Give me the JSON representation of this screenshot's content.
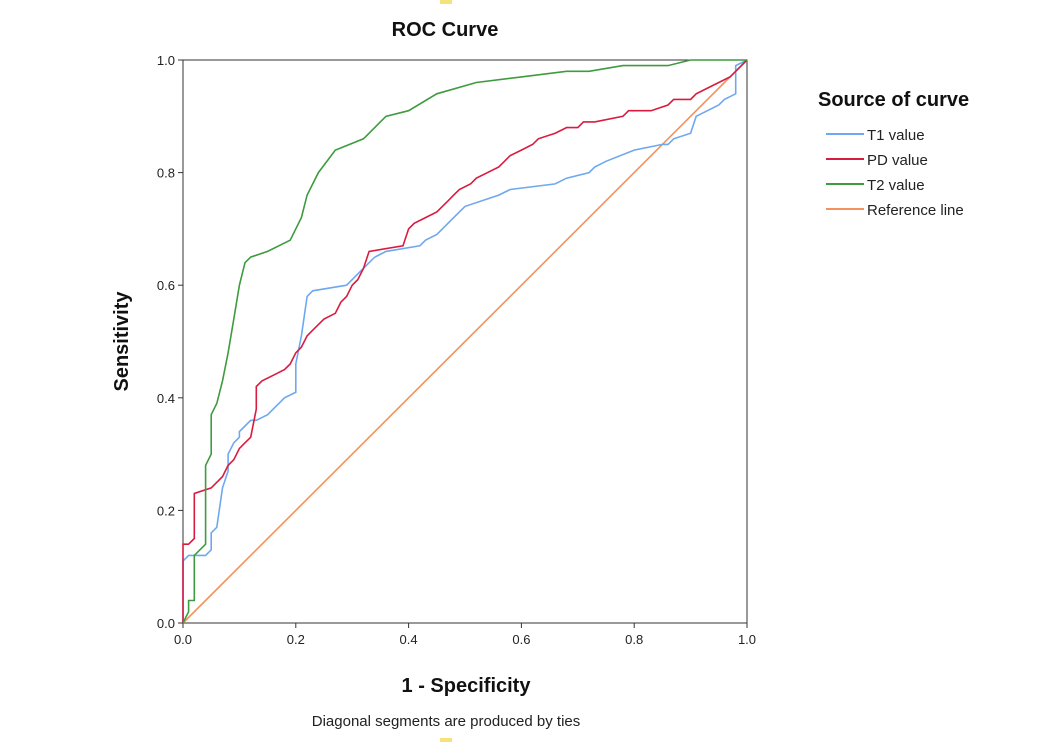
{
  "chart_data": {
    "type": "line",
    "title": "ROC Curve",
    "xlabel": "1 - Specificity",
    "ylabel": "Sensitivity",
    "xlim": [
      0,
      1
    ],
    "ylim": [
      0,
      1
    ],
    "x_ticks": [
      0.0,
      0.2,
      0.4,
      0.6,
      0.8,
      1.0
    ],
    "y_ticks": [
      0.0,
      0.2,
      0.4,
      0.6,
      0.8,
      1.0
    ],
    "x_tick_labels": [
      "0.0",
      "0.2",
      "0.4",
      "0.6",
      "0.8",
      "1.0"
    ],
    "y_tick_labels": [
      "0.0",
      "0.2",
      "0.4",
      "0.6",
      "0.8",
      "1.0"
    ],
    "grid": false,
    "legend_title": "Source of curve",
    "legend_position": "right",
    "footnote": "Diagonal  segments are produced by ties",
    "series": [
      {
        "name": "T1 value",
        "color": "#6fa8f0",
        "x": [
          0,
          0,
          0.01,
          0.04,
          0.05,
          0.05,
          0.06,
          0.07,
          0.08,
          0.08,
          0.09,
          0.1,
          0.1,
          0.11,
          0.12,
          0.13,
          0.15,
          0.16,
          0.17,
          0.18,
          0.2,
          0.2,
          0.21,
          0.22,
          0.23,
          0.23,
          0.29,
          0.31,
          0.32,
          0.33,
          0.34,
          0.36,
          0.42,
          0.43,
          0.45,
          0.46,
          0.48,
          0.5,
          0.56,
          0.58,
          0.66,
          0.68,
          0.72,
          0.73,
          0.75,
          0.8,
          0.85,
          0.86,
          0.87,
          0.9,
          0.91,
          0.95,
          0.96,
          0.98,
          0.98,
          1.0
        ],
        "y": [
          0,
          0.11,
          0.12,
          0.12,
          0.13,
          0.16,
          0.17,
          0.24,
          0.27,
          0.3,
          0.32,
          0.33,
          0.34,
          0.35,
          0.36,
          0.36,
          0.37,
          0.38,
          0.39,
          0.4,
          0.41,
          0.46,
          0.51,
          0.58,
          0.59,
          0.59,
          0.6,
          0.62,
          0.63,
          0.64,
          0.65,
          0.66,
          0.67,
          0.68,
          0.69,
          0.7,
          0.72,
          0.74,
          0.76,
          0.77,
          0.78,
          0.79,
          0.8,
          0.81,
          0.82,
          0.84,
          0.85,
          0.85,
          0.86,
          0.87,
          0.9,
          0.92,
          0.93,
          0.94,
          0.99,
          1.0
        ]
      },
      {
        "name": "PD value",
        "color": "#d81c3f",
        "x": [
          0,
          0,
          0.01,
          0.02,
          0.02,
          0.05,
          0.06,
          0.07,
          0.08,
          0.09,
          0.1,
          0.11,
          0.12,
          0.13,
          0.13,
          0.14,
          0.16,
          0.18,
          0.19,
          0.2,
          0.21,
          0.22,
          0.23,
          0.24,
          0.25,
          0.27,
          0.28,
          0.29,
          0.3,
          0.31,
          0.32,
          0.33,
          0.39,
          0.4,
          0.41,
          0.43,
          0.45,
          0.46,
          0.47,
          0.48,
          0.49,
          0.51,
          0.52,
          0.56,
          0.57,
          0.58,
          0.6,
          0.62,
          0.63,
          0.66,
          0.68,
          0.7,
          0.71,
          0.73,
          0.78,
          0.79,
          0.83,
          0.86,
          0.87,
          0.9,
          0.91,
          0.93,
          0.95,
          0.97,
          0.98,
          1.0
        ],
        "y": [
          0,
          0.14,
          0.14,
          0.15,
          0.23,
          0.24,
          0.25,
          0.26,
          0.28,
          0.29,
          0.31,
          0.32,
          0.33,
          0.38,
          0.42,
          0.43,
          0.44,
          0.45,
          0.46,
          0.48,
          0.49,
          0.51,
          0.52,
          0.53,
          0.54,
          0.55,
          0.57,
          0.58,
          0.6,
          0.61,
          0.63,
          0.66,
          0.67,
          0.7,
          0.71,
          0.72,
          0.73,
          0.74,
          0.75,
          0.76,
          0.77,
          0.78,
          0.79,
          0.81,
          0.82,
          0.83,
          0.84,
          0.85,
          0.86,
          0.87,
          0.88,
          0.88,
          0.89,
          0.89,
          0.9,
          0.91,
          0.91,
          0.92,
          0.93,
          0.93,
          0.94,
          0.95,
          0.96,
          0.97,
          0.98,
          1.0
        ]
      },
      {
        "name": "T2 value",
        "color": "#3f9b3f",
        "x": [
          0,
          0.01,
          0.01,
          0.02,
          0.02,
          0.04,
          0.04,
          0.05,
          0.05,
          0.06,
          0.07,
          0.08,
          0.09,
          0.1,
          0.11,
          0.12,
          0.15,
          0.19,
          0.21,
          0.22,
          0.24,
          0.27,
          0.32,
          0.36,
          0.4,
          0.45,
          0.52,
          0.6,
          0.68,
          0.72,
          0.78,
          0.86,
          0.9,
          0.95,
          1.0
        ],
        "y": [
          0,
          0.02,
          0.04,
          0.04,
          0.12,
          0.14,
          0.28,
          0.3,
          0.37,
          0.39,
          0.43,
          0.48,
          0.54,
          0.6,
          0.64,
          0.65,
          0.66,
          0.68,
          0.72,
          0.76,
          0.8,
          0.84,
          0.86,
          0.9,
          0.91,
          0.94,
          0.96,
          0.97,
          0.98,
          0.98,
          0.99,
          0.99,
          1.0,
          1.0,
          1.0
        ]
      },
      {
        "name": "Reference line",
        "color": "#f4925c",
        "x": [
          0,
          1
        ],
        "y": [
          0,
          1
        ]
      }
    ]
  }
}
